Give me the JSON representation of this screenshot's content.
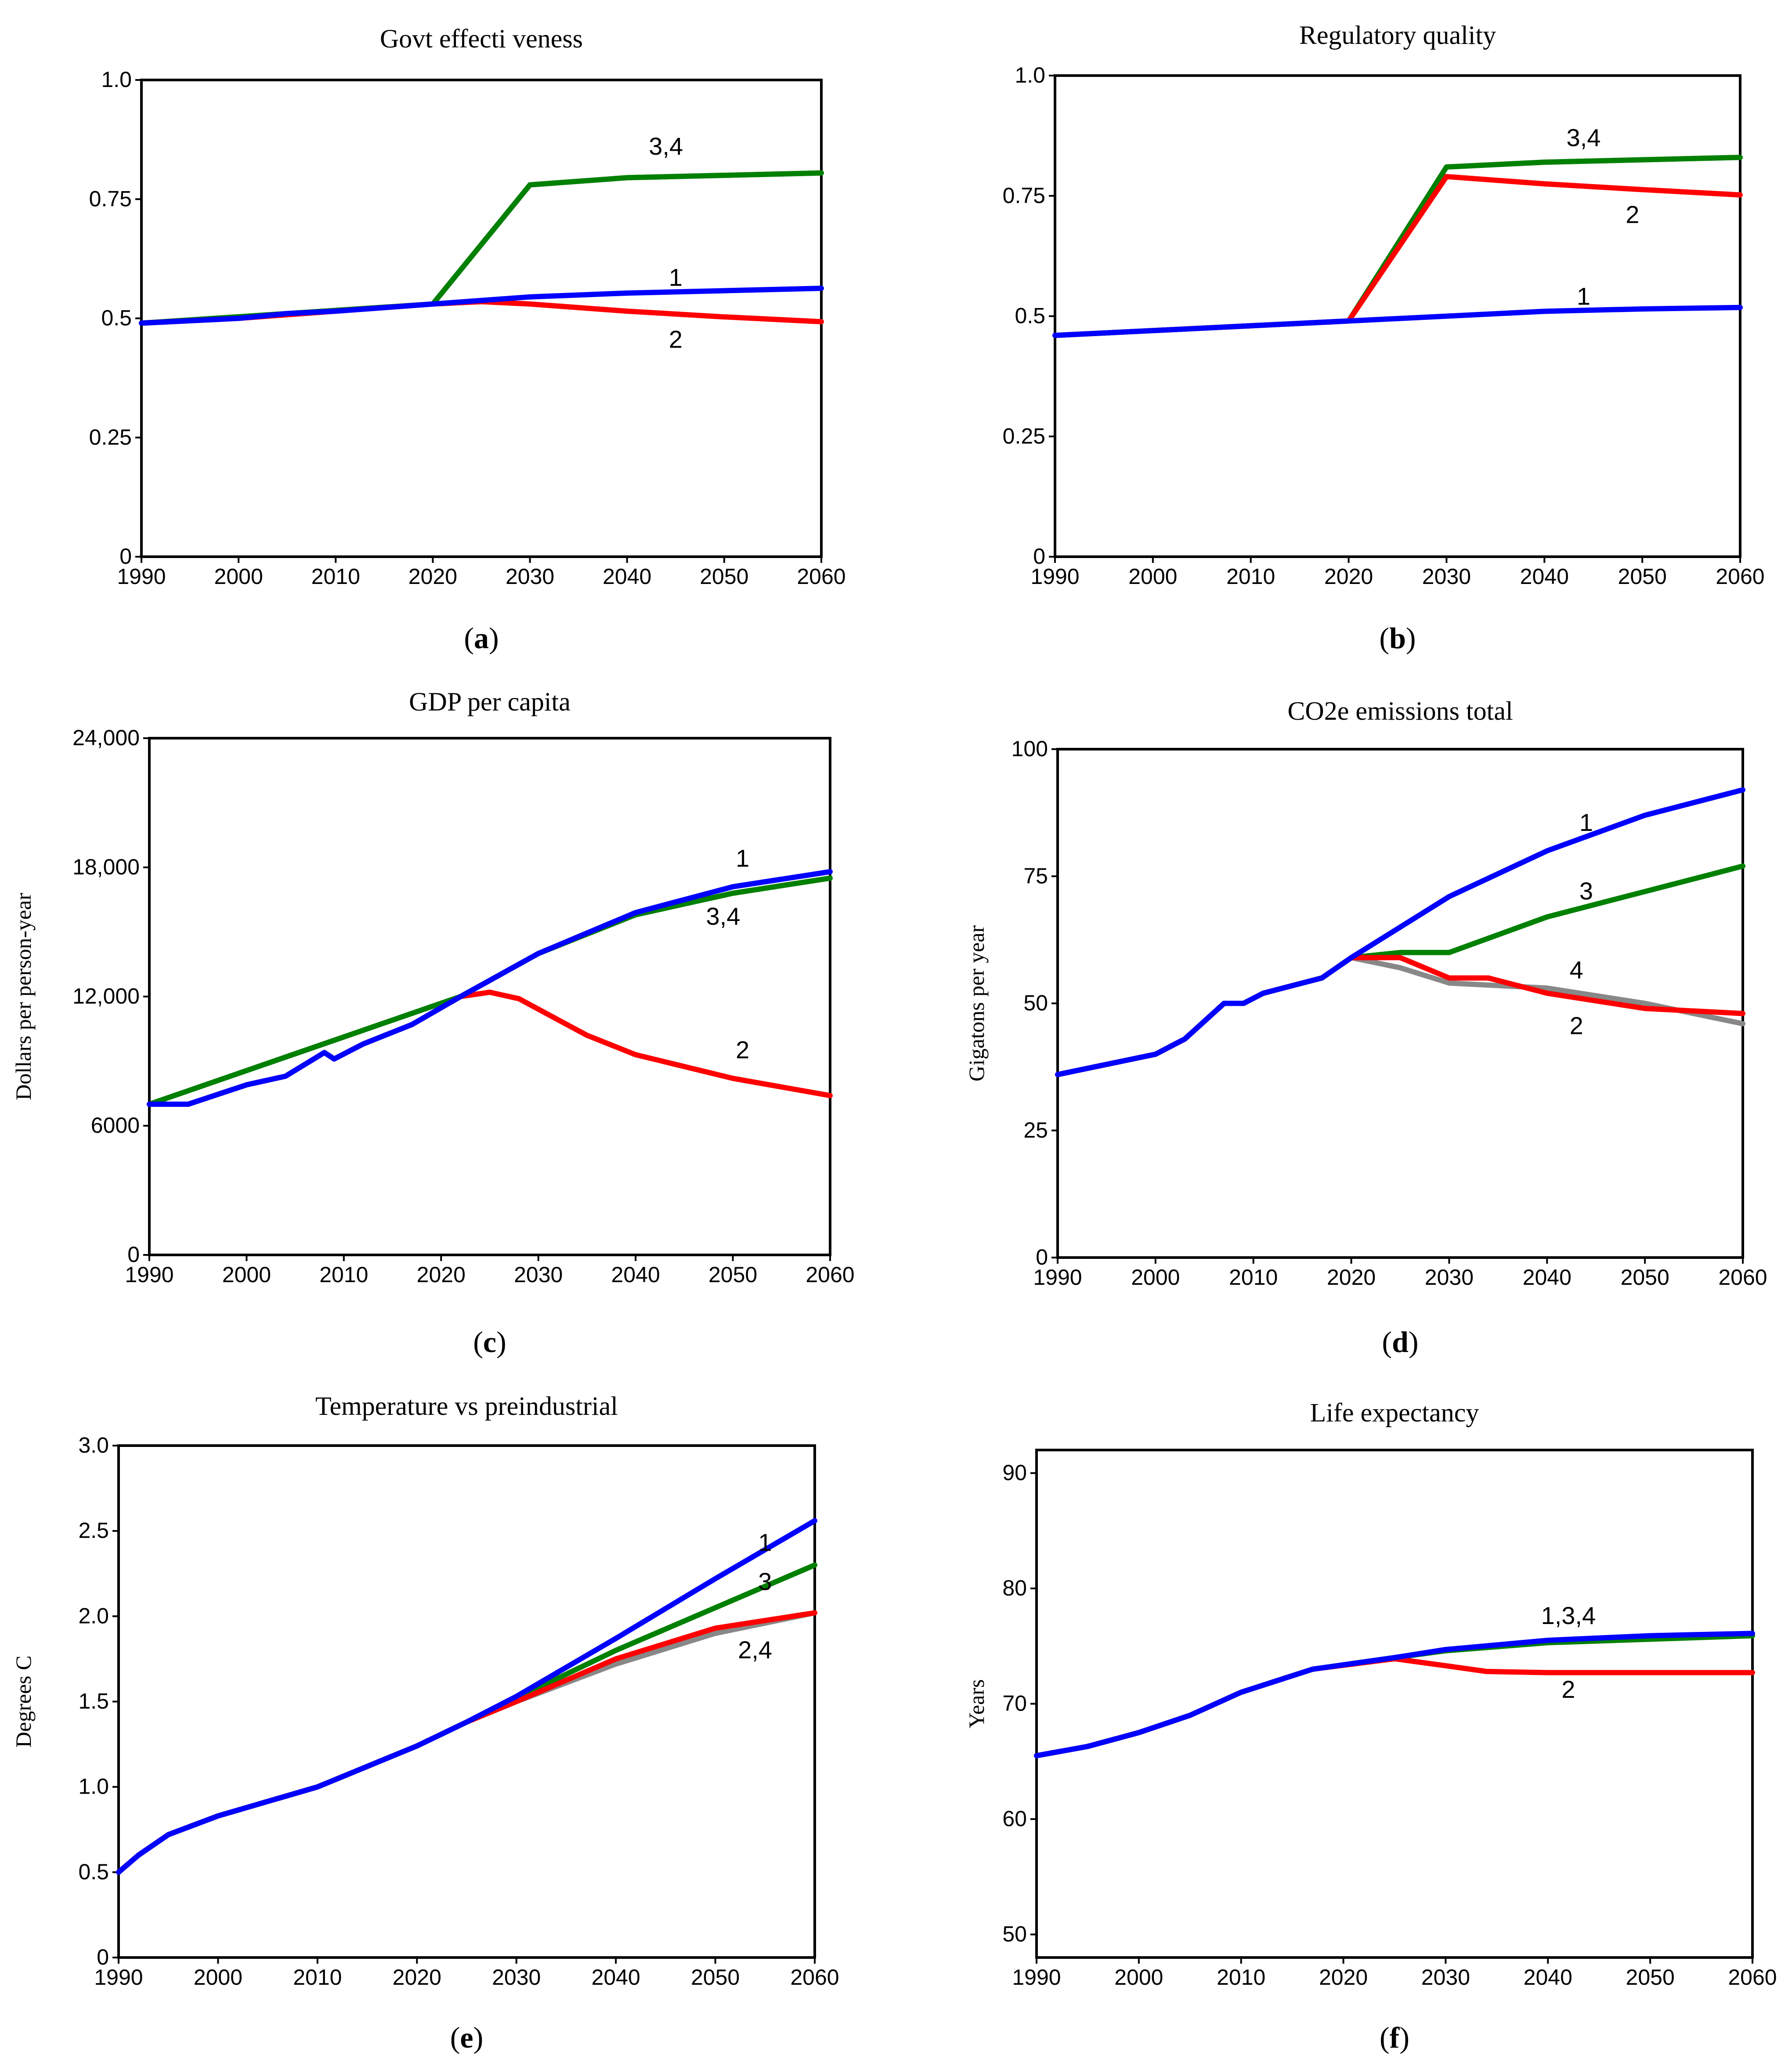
{
  "figure": {
    "colors": {
      "1": "#0000ff",
      "2": "#ff0000",
      "3": "#008000",
      "4": "#888888"
    }
  },
  "chart_data": [
    {
      "type": "line",
      "caption_letter": "a",
      "title": "Govt effecti veness",
      "ylabel": "",
      "xlim": [
        1990,
        2060
      ],
      "ylim": [
        0,
        1.0
      ],
      "xticks": [
        "1990",
        "2000",
        "2010",
        "2020",
        "2030",
        "2040",
        "2050",
        "2060"
      ],
      "yticks": [
        "0",
        "0.25",
        "0.5",
        "0.75",
        "1.0"
      ],
      "yticks_values": [
        0,
        0.25,
        0.5,
        0.75,
        1.0
      ],
      "series": [
        {
          "name": "4",
          "color": "4",
          "x": [
            1990,
            2020,
            2030,
            2040,
            2050,
            2060
          ],
          "y": [
            0.49,
            0.53,
            0.78,
            0.795,
            0.8,
            0.805
          ]
        },
        {
          "name": "3",
          "color": "3",
          "x": [
            1990,
            2020,
            2030,
            2040,
            2050,
            2060
          ],
          "y": [
            0.49,
            0.53,
            0.78,
            0.795,
            0.8,
            0.805
          ]
        },
        {
          "name": "2",
          "color": "2",
          "x": [
            1990,
            2000,
            2010,
            2020,
            2025,
            2030,
            2040,
            2050,
            2060
          ],
          "y": [
            0.49,
            0.5,
            0.515,
            0.53,
            0.535,
            0.53,
            0.515,
            0.503,
            0.493
          ]
        },
        {
          "name": "1",
          "color": "1",
          "x": [
            1990,
            2000,
            2005,
            2010,
            2020,
            2030,
            2040,
            2050,
            2060
          ],
          "y": [
            0.49,
            0.5,
            0.51,
            0.515,
            0.53,
            0.545,
            0.553,
            0.558,
            0.563
          ]
        }
      ],
      "labels": [
        {
          "text": "3,4",
          "x": 2044,
          "y": 0.86
        },
        {
          "text": "1",
          "x": 2045,
          "y": 0.585
        },
        {
          "text": "2",
          "x": 2045,
          "y": 0.455
        }
      ]
    },
    {
      "type": "line",
      "caption_letter": "b",
      "title": "Regulatory quality",
      "ylabel": "",
      "xlim": [
        1990,
        2060
      ],
      "ylim": [
        0,
        1.0
      ],
      "xticks": [
        "1990",
        "2000",
        "2010",
        "2020",
        "2030",
        "2040",
        "2050",
        "2060"
      ],
      "yticks": [
        "0",
        "0.25",
        "0.5",
        "0.75",
        "1.0"
      ],
      "yticks_values": [
        0,
        0.25,
        0.5,
        0.75,
        1.0
      ],
      "series": [
        {
          "name": "4",
          "color": "4",
          "x": [
            1990,
            2020,
            2030,
            2040,
            2050,
            2060
          ],
          "y": [
            0.46,
            0.49,
            0.81,
            0.82,
            0.825,
            0.83
          ]
        },
        {
          "name": "3",
          "color": "3",
          "x": [
            1990,
            2020,
            2030,
            2040,
            2050,
            2060
          ],
          "y": [
            0.46,
            0.49,
            0.81,
            0.82,
            0.825,
            0.83
          ]
        },
        {
          "name": "2",
          "color": "2",
          "x": [
            1990,
            2020,
            2030,
            2040,
            2050,
            2060
          ],
          "y": [
            0.46,
            0.49,
            0.79,
            0.775,
            0.763,
            0.752
          ]
        },
        {
          "name": "1",
          "color": "1",
          "x": [
            1990,
            2000,
            2010,
            2020,
            2030,
            2040,
            2050,
            2060
          ],
          "y": [
            0.46,
            0.47,
            0.48,
            0.49,
            0.5,
            0.51,
            0.515,
            0.518
          ]
        }
      ],
      "labels": [
        {
          "text": "3,4",
          "x": 2044,
          "y": 0.87
        },
        {
          "text": "2",
          "x": 2049,
          "y": 0.71
        },
        {
          "text": "1",
          "x": 2044,
          "y": 0.54
        }
      ]
    },
    {
      "type": "line",
      "caption_letter": "c",
      "title": "GDP per capita",
      "ylabel": "Dollars per person-year",
      "xlim": [
        1990,
        2060
      ],
      "ylim": [
        0,
        24000
      ],
      "xticks": [
        "1990",
        "2000",
        "2010",
        "2020",
        "2030",
        "2040",
        "2050",
        "2060"
      ],
      "yticks": [
        "0",
        "6000",
        "12,000",
        "18,000",
        "24,000"
      ],
      "yticks_values": [
        0,
        6000,
        12000,
        18000,
        24000
      ],
      "series": [
        {
          "name": "4",
          "color": "4",
          "x": [
            1990,
            2022,
            2030,
            2040,
            2050,
            2060
          ],
          "y": [
            7000,
            12000,
            14000,
            15800,
            16800,
            17500
          ]
        },
        {
          "name": "3",
          "color": "3",
          "x": [
            1990,
            2022,
            2030,
            2040,
            2050,
            2060
          ],
          "y": [
            7000,
            12000,
            14000,
            15800,
            16800,
            17500
          ]
        },
        {
          "name": "2",
          "color": "2",
          "x": [
            1990,
            1994,
            2000,
            2004,
            2008,
            2009,
            2012,
            2017,
            2022,
            2025,
            2028,
            2035,
            2040,
            2050,
            2060
          ],
          "y": [
            7000,
            7000,
            7900,
            8300,
            9400,
            9100,
            9800,
            10700,
            12000,
            12200,
            11900,
            10200,
            9300,
            8200,
            7400
          ]
        },
        {
          "name": "1",
          "color": "1",
          "x": [
            1990,
            1994,
            2000,
            2004,
            2008,
            2009,
            2012,
            2017,
            2022,
            2030,
            2040,
            2050,
            2060
          ],
          "y": [
            7000,
            7000,
            7900,
            8300,
            9400,
            9100,
            9800,
            10700,
            12000,
            14000,
            15900,
            17100,
            17800
          ]
        }
      ],
      "labels": [
        {
          "text": "1",
          "x": 2051,
          "y": 18400
        },
        {
          "text": "3,4",
          "x": 2049,
          "y": 15700
        },
        {
          "text": "2",
          "x": 2051,
          "y": 9500
        }
      ]
    },
    {
      "type": "line",
      "caption_letter": "d",
      "title": "CO2e emissions total",
      "ylabel": "Gigatons per year",
      "xlim": [
        1990,
        2060
      ],
      "ylim": [
        0,
        100
      ],
      "xticks": [
        "1990",
        "2000",
        "2010",
        "2020",
        "2030",
        "2040",
        "2050",
        "2060"
      ],
      "yticks": [
        "0",
        "25",
        "50",
        "75",
        "100"
      ],
      "yticks_values": [
        0,
        25,
        50,
        75,
        100
      ],
      "series": [
        {
          "name": "4",
          "color": "4",
          "x": [
            1990,
            2000,
            2003,
            2007,
            2009,
            2011,
            2017,
            2020,
            2025,
            2030,
            2040,
            2050,
            2060
          ],
          "y": [
            36,
            40,
            43,
            50,
            50,
            52,
            55,
            59,
            57,
            54,
            53,
            50,
            46
          ]
        },
        {
          "name": "3",
          "color": "3",
          "x": [
            1990,
            2000,
            2003,
            2007,
            2009,
            2011,
            2017,
            2020,
            2025,
            2030,
            2040,
            2050,
            2060
          ],
          "y": [
            36,
            40,
            43,
            50,
            50,
            52,
            55,
            59,
            60,
            60,
            67,
            72,
            77
          ]
        },
        {
          "name": "2",
          "color": "2",
          "x": [
            1990,
            2000,
            2003,
            2007,
            2009,
            2011,
            2017,
            2020,
            2025,
            2030,
            2034,
            2040,
            2050,
            2060
          ],
          "y": [
            36,
            40,
            43,
            50,
            50,
            52,
            55,
            59,
            59,
            55,
            55,
            52,
            49,
            48
          ]
        },
        {
          "name": "1",
          "color": "1",
          "x": [
            1990,
            2000,
            2003,
            2007,
            2009,
            2011,
            2017,
            2020,
            2030,
            2040,
            2050,
            2060
          ],
          "y": [
            36,
            40,
            43,
            50,
            50,
            52,
            55,
            59,
            71,
            80,
            87,
            92
          ]
        }
      ],
      "labels": [
        {
          "text": "1",
          "x": 2044,
          "y": 85.5
        },
        {
          "text": "3",
          "x": 2044,
          "y": 72
        },
        {
          "text": "4",
          "x": 2043,
          "y": 56.5
        },
        {
          "text": "2",
          "x": 2043,
          "y": 45.5
        }
      ]
    },
    {
      "type": "line",
      "caption_letter": "e",
      "title": "Temperature vs preindustrial",
      "ylabel": "Degrees C",
      "xlim": [
        1990,
        2060
      ],
      "ylim": [
        0,
        3.0
      ],
      "xticks": [
        "1990",
        "2000",
        "2010",
        "2020",
        "2030",
        "2040",
        "2050",
        "2060"
      ],
      "yticks": [
        "0",
        "0.5",
        "1.0",
        "1.5",
        "2.0",
        "2.5",
        "3.0"
      ],
      "yticks_values": [
        0,
        0.5,
        1.0,
        1.5,
        2.0,
        2.5,
        3.0
      ],
      "series": [
        {
          "name": "4",
          "color": "4",
          "x": [
            1990,
            1992,
            1995,
            2000,
            2010,
            2020,
            2025,
            2030,
            2040,
            2050,
            2060
          ],
          "y": [
            0.5,
            0.6,
            0.72,
            0.83,
            1.0,
            1.24,
            1.38,
            1.5,
            1.72,
            1.9,
            2.02
          ]
        },
        {
          "name": "3",
          "color": "3",
          "x": [
            1990,
            1992,
            1995,
            2000,
            2010,
            2020,
            2025,
            2030,
            2040,
            2050,
            2060
          ],
          "y": [
            0.5,
            0.6,
            0.72,
            0.83,
            1.0,
            1.24,
            1.38,
            1.52,
            1.8,
            2.05,
            2.3
          ]
        },
        {
          "name": "2",
          "color": "2",
          "x": [
            1990,
            1992,
            1995,
            2000,
            2010,
            2020,
            2025,
            2030,
            2040,
            2050,
            2060
          ],
          "y": [
            0.5,
            0.6,
            0.72,
            0.83,
            1.0,
            1.24,
            1.38,
            1.5,
            1.75,
            1.93,
            2.02
          ]
        },
        {
          "name": "1",
          "color": "1",
          "x": [
            1990,
            1992,
            1995,
            2000,
            2010,
            2020,
            2025,
            2030,
            2040,
            2050,
            2060
          ],
          "y": [
            0.5,
            0.6,
            0.72,
            0.83,
            1.0,
            1.24,
            1.38,
            1.53,
            1.87,
            2.22,
            2.56
          ]
        }
      ],
      "labels": [
        {
          "text": "1",
          "x": 2055,
          "y": 2.43
        },
        {
          "text": "3",
          "x": 2055,
          "y": 2.2
        },
        {
          "text": "2,4",
          "x": 2054,
          "y": 1.8
        }
      ]
    },
    {
      "type": "line",
      "caption_letter": "f",
      "title": "Life expectancy",
      "ylabel": "Years",
      "xlim": [
        1990,
        2060
      ],
      "ylim": [
        48,
        92
      ],
      "xticks": [
        "1990",
        "2000",
        "2010",
        "2020",
        "2030",
        "2040",
        "2050",
        "2060"
      ],
      "yticks": [
        "50",
        "60",
        "70",
        "80",
        "90"
      ],
      "yticks_values": [
        50,
        60,
        70,
        80,
        90
      ],
      "series": [
        {
          "name": "4",
          "color": "4",
          "x": [
            1990,
            1995,
            2000,
            2005,
            2010,
            2017,
            2025,
            2030,
            2040,
            2050,
            2060
          ],
          "y": [
            65.5,
            66.3,
            67.5,
            69,
            71,
            73,
            74,
            74.6,
            75.3,
            75.6,
            75.9
          ]
        },
        {
          "name": "3",
          "color": "3",
          "x": [
            1990,
            1995,
            2000,
            2005,
            2010,
            2017,
            2025,
            2030,
            2040,
            2050,
            2060
          ],
          "y": [
            65.5,
            66.3,
            67.5,
            69,
            71,
            73,
            74,
            74.6,
            75.3,
            75.6,
            75.9
          ]
        },
        {
          "name": "2",
          "color": "2",
          "x": [
            1990,
            1995,
            2000,
            2005,
            2010,
            2017,
            2025,
            2030,
            2034,
            2040,
            2050,
            2060
          ],
          "y": [
            65.5,
            66.3,
            67.5,
            69,
            71,
            73,
            73.9,
            73.3,
            72.8,
            72.7,
            72.7,
            72.7
          ]
        },
        {
          "name": "1",
          "color": "1",
          "x": [
            1990,
            1995,
            2000,
            2005,
            2010,
            2017,
            2025,
            2030,
            2040,
            2050,
            2060
          ],
          "y": [
            65.5,
            66.3,
            67.5,
            69,
            71,
            73,
            74,
            74.7,
            75.5,
            75.9,
            76.1
          ]
        }
      ],
      "labels": [
        {
          "text": "1,3,4",
          "x": 2042,
          "y": 77.6
        },
        {
          "text": "2",
          "x": 2042,
          "y": 71.2
        }
      ]
    }
  ]
}
